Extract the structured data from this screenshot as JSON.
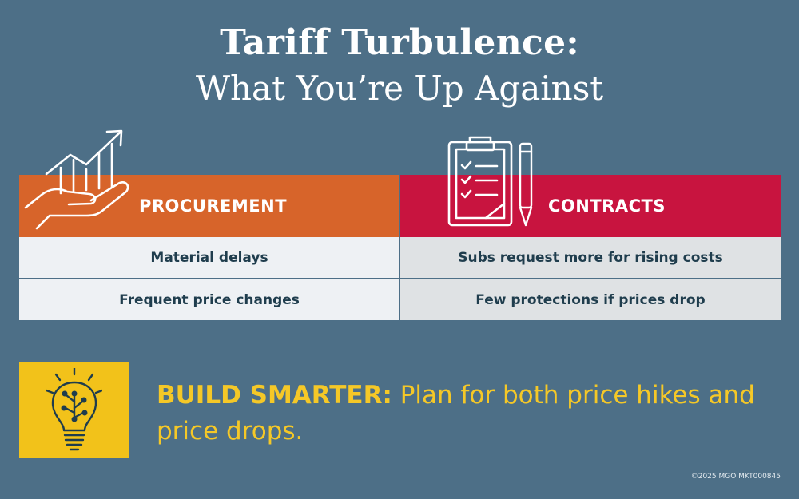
{
  "title": {
    "line1": "Tariff Turbulence:",
    "line2": "What You’re Up Against"
  },
  "procurement": {
    "heading": "PROCUREMENT",
    "rows": [
      "Material delays",
      "Frequent price changes"
    ]
  },
  "contracts": {
    "heading": "CONTRACTS",
    "rows": [
      "Subs request more for rising costs",
      "Few protections if prices drop"
    ]
  },
  "callout": {
    "lead": "BUILD SMARTER:",
    "text": " Plan for both price hikes and price drops."
  },
  "footer": {
    "copyright": "©2025 MGO  MKT000845"
  },
  "colors": {
    "background": "#4d6f87",
    "procurement": "#d7642a",
    "contracts": "#c8143f",
    "accent": "#f2c21a"
  },
  "icons": [
    "hand-growth-chart-icon",
    "clipboard-checklist-icon",
    "pencil-icon",
    "lightbulb-circuit-icon"
  ]
}
